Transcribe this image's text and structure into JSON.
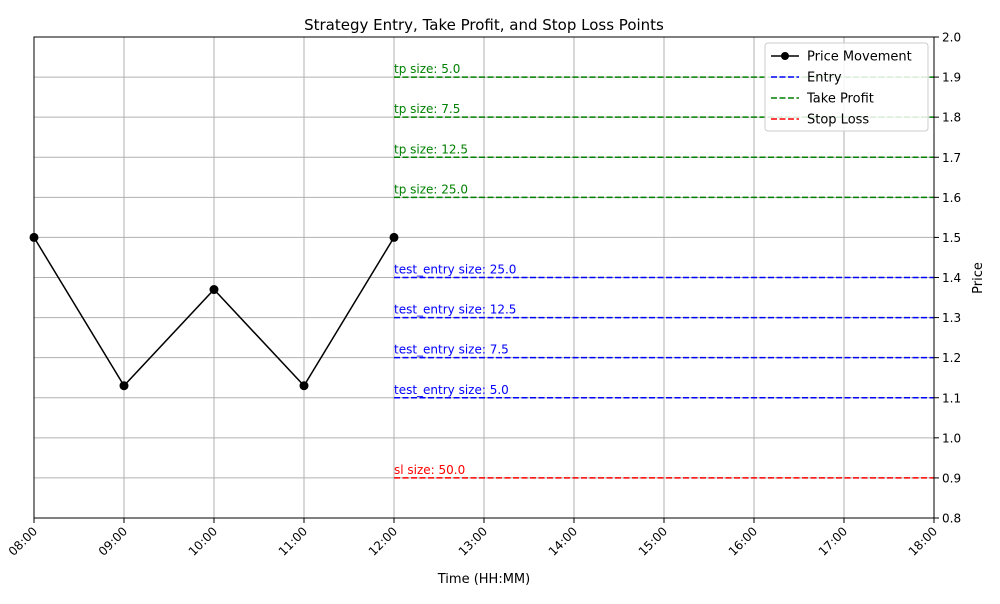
{
  "chart_data": {
    "type": "line",
    "title": "Strategy Entry, Take Profit, and Stop Loss Points",
    "xlabel": "Time (HH:MM)",
    "ylabel": "Price",
    "x_ticks": [
      "08:00",
      "09:00",
      "10:00",
      "11:00",
      "12:00",
      "13:00",
      "14:00",
      "15:00",
      "16:00",
      "17:00",
      "18:00"
    ],
    "y_ticks": [
      "0.8",
      "0.9",
      "1.0",
      "1.1",
      "1.2",
      "1.3",
      "1.4",
      "1.5",
      "1.6",
      "1.7",
      "1.8",
      "1.9",
      "2.0"
    ],
    "xlim": [
      "08:00",
      "18:00"
    ],
    "ylim": [
      0.8,
      2.0
    ],
    "grid": true,
    "legend_position": "top-right",
    "series": [
      {
        "name": "Price Movement",
        "color": "#000000",
        "x": [
          "08:00",
          "09:00",
          "10:00",
          "11:00",
          "12:00"
        ],
        "values": [
          1.5,
          1.13,
          1.37,
          1.13,
          1.5
        ]
      }
    ],
    "levels": [
      {
        "kind": "take_profit",
        "label": "tp size: 5.0",
        "price": 1.9,
        "start": "12:00",
        "end": "18:00",
        "color": "#008000"
      },
      {
        "kind": "take_profit",
        "label": "tp size: 7.5",
        "price": 1.8,
        "start": "12:00",
        "end": "18:00",
        "color": "#008000"
      },
      {
        "kind": "take_profit",
        "label": "tp size: 12.5",
        "price": 1.7,
        "start": "12:00",
        "end": "18:00",
        "color": "#008000"
      },
      {
        "kind": "take_profit",
        "label": "tp size: 25.0",
        "price": 1.6,
        "start": "12:00",
        "end": "18:00",
        "color": "#008000"
      },
      {
        "kind": "entry",
        "label": "test_entry size: 25.0",
        "price": 1.4,
        "start": "12:00",
        "end": "18:00",
        "color": "#0000ff"
      },
      {
        "kind": "entry",
        "label": "test_entry size: 12.5",
        "price": 1.3,
        "start": "12:00",
        "end": "18:00",
        "color": "#0000ff"
      },
      {
        "kind": "entry",
        "label": "test_entry size: 7.5",
        "price": 1.2,
        "start": "12:00",
        "end": "18:00",
        "color": "#0000ff"
      },
      {
        "kind": "entry",
        "label": "test_entry size: 5.0",
        "price": 1.1,
        "start": "12:00",
        "end": "18:00",
        "color": "#0000ff"
      },
      {
        "kind": "stop_loss",
        "label": "sl size: 50.0",
        "price": 0.9,
        "start": "12:00",
        "end": "18:00",
        "color": "#ff0000"
      }
    ],
    "legend": [
      {
        "label": "Price Movement",
        "color": "#000000",
        "style": "line-marker"
      },
      {
        "label": "Entry",
        "color": "#0000ff",
        "style": "dashed"
      },
      {
        "label": "Take Profit",
        "color": "#008000",
        "style": "dashed"
      },
      {
        "label": "Stop Loss",
        "color": "#ff0000",
        "style": "dashed"
      }
    ]
  }
}
